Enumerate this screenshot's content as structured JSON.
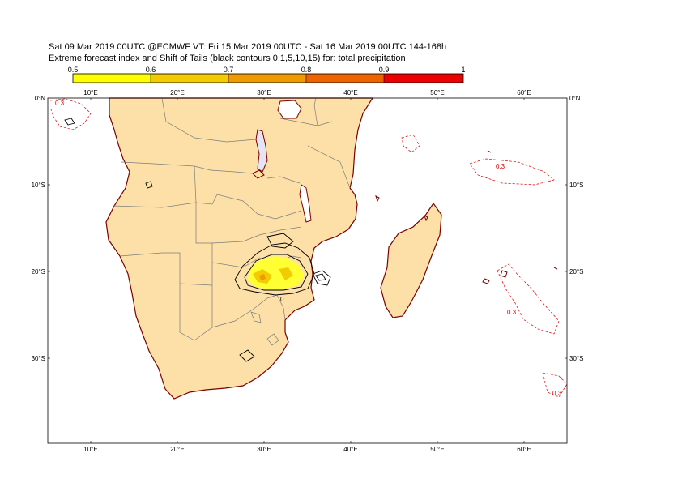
{
  "header": {
    "line1": "Sat 09 Mar 2019 00UTC @ECMWF VT: Fri 15 Mar 2019 00UTC - Sat 16 Mar 2019 00UTC  144-168h",
    "line2": "Extreme forecast index and Shift of Tails (black contours 0,1,5,10,15) for: total precipitation"
  },
  "colorbar": {
    "labels": [
      "0.5",
      "0.6",
      "0.7",
      "0.8",
      "0.9",
      "1"
    ],
    "colors": [
      "#ffff00",
      "#f2cc00",
      "#ee9a00",
      "#ee6200",
      "#ee0000"
    ]
  },
  "map": {
    "lon_labels": [
      "10°E",
      "20°E",
      "30°E",
      "40°E",
      "50°E",
      "60°E"
    ],
    "lat_labels": [
      "0°N",
      "10°S",
      "20°S",
      "30°S"
    ],
    "contour_label": "0.3",
    "sot_label": "0",
    "land_color": "#fde0a8",
    "coast_color": "#7a0000"
  }
}
